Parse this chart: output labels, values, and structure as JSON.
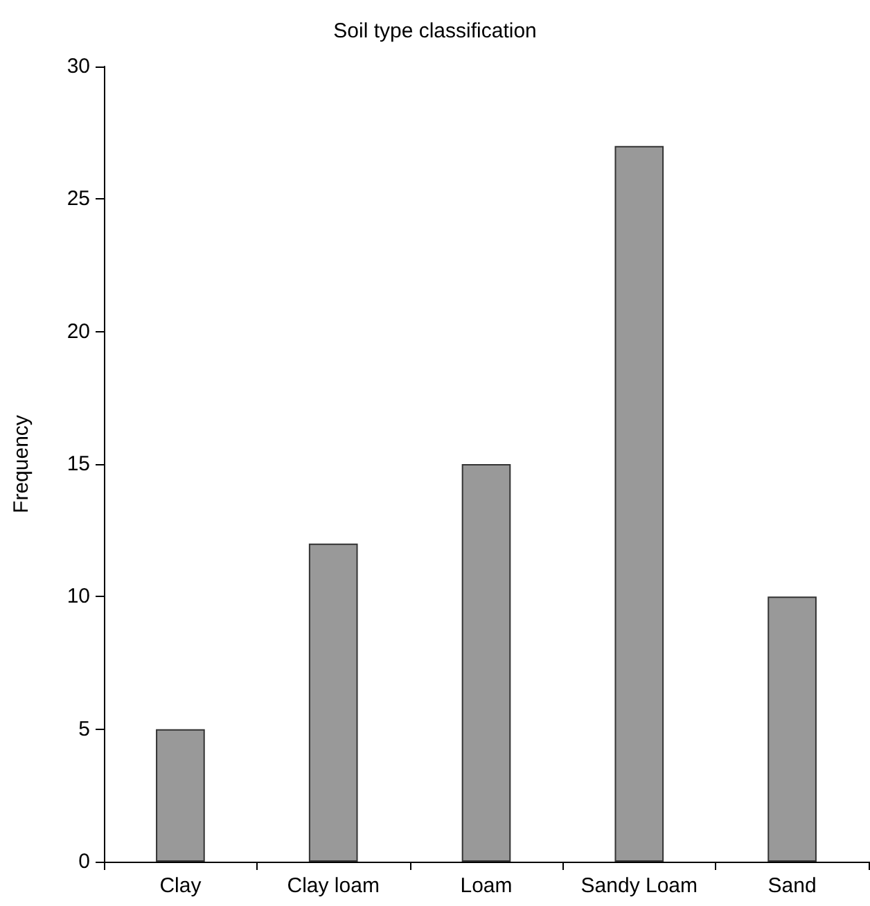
{
  "chart_data": {
    "type": "bar",
    "title": "Soil type classification",
    "ylabel": "Frequency",
    "categories": [
      "Clay",
      "Clay loam",
      "Loam",
      "Sandy Loam",
      "Sand"
    ],
    "values": [
      5,
      12,
      15,
      27,
      10
    ],
    "color": "#999999",
    "ylim": [
      0,
      30
    ],
    "yticks": [
      0,
      5,
      10,
      15,
      20,
      25,
      30
    ],
    "grid": false
  }
}
